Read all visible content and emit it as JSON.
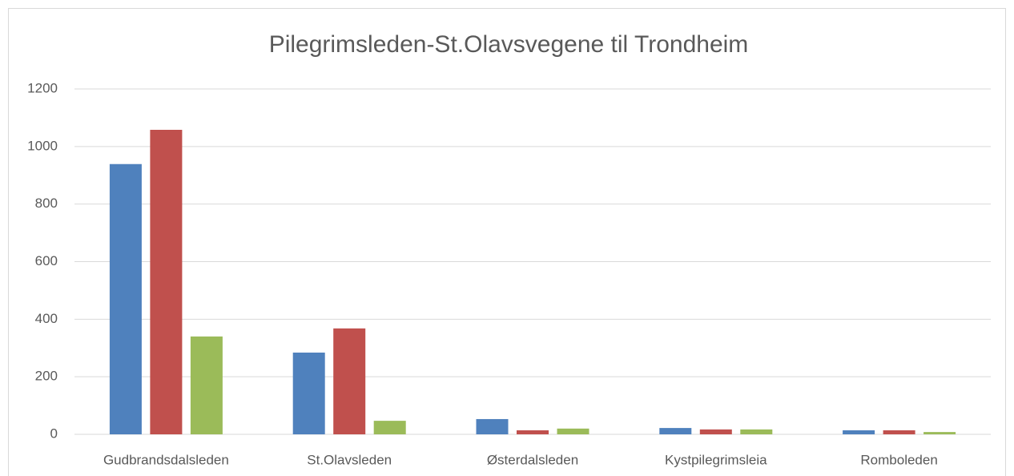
{
  "chart_data": {
    "type": "bar",
    "title": "Pilegrimsleden-St.Olavsvegene til Trondheim",
    "categories": [
      "Gudbrandsdalsleden",
      "St.Olavsleden",
      "Østerdalsleden",
      "Kystpilegrimsleia",
      "Romboleden"
    ],
    "series": [
      {
        "color": "#4f81bd",
        "values": [
          939,
          284,
          53,
          22,
          14
        ]
      },
      {
        "color": "#c0504d",
        "values": [
          1058,
          368,
          14,
          17,
          14
        ]
      },
      {
        "color": "#9bbb59",
        "values": [
          340,
          47,
          20,
          17,
          8
        ]
      }
    ],
    "ylim": [
      0,
      1200
    ],
    "yticks": [
      0,
      200,
      400,
      600,
      800,
      1000,
      1200
    ],
    "grid": true
  }
}
